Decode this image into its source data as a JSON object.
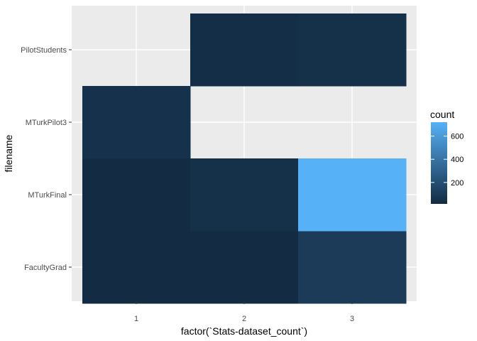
{
  "chart_data": {
    "type": "heatmap",
    "title": "",
    "xlabel": "factor(`Stats-dataset_count`)",
    "ylabel": "filename",
    "x_categories": [
      "1",
      "2",
      "3"
    ],
    "y_categories": [
      "FacultyGrad",
      "MTurkFinal",
      "MTurkPilot3",
      "PilotStudents"
    ],
    "cells": [
      {
        "x": "1",
        "y": "FacultyGrad",
        "count": 20
      },
      {
        "x": "2",
        "y": "FacultyGrad",
        "count": 20
      },
      {
        "x": "3",
        "y": "FacultyGrad",
        "count": 100
      },
      {
        "x": "1",
        "y": "MTurkFinal",
        "count": 20
      },
      {
        "x": "2",
        "y": "MTurkFinal",
        "count": 40
      },
      {
        "x": "3",
        "y": "MTurkFinal",
        "count": 720
      },
      {
        "x": "1",
        "y": "MTurkPilot3",
        "count": 45
      },
      {
        "x": "2",
        "y": "PilotStudents",
        "count": 30
      },
      {
        "x": "3",
        "y": "PilotStudents",
        "count": 40
      }
    ],
    "legend": {
      "title": "count",
      "position": "right",
      "range": [
        15,
        720
      ],
      "ticks": [
        200,
        400,
        600
      ],
      "low_color": "#132B43",
      "high_color": "#56B1F7"
    },
    "panel_background": "#EBEBEB",
    "grid": true
  }
}
